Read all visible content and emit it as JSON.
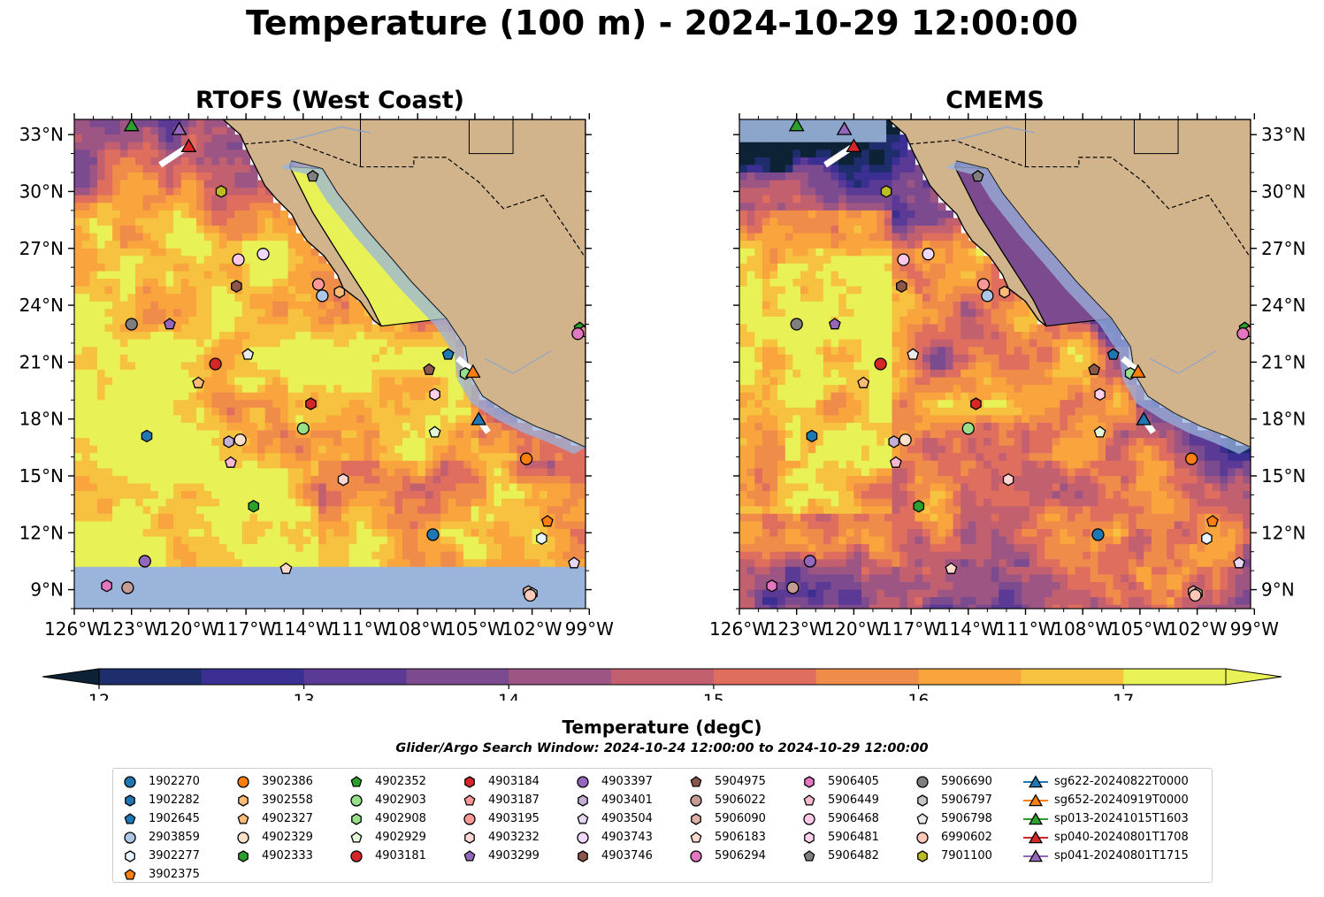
{
  "figure": {
    "title": "Temperature (100 m) - 2024-10-29 12:00:00"
  },
  "panels": [
    {
      "title": "RTOFS (West Coast)",
      "tick_side": "left"
    },
    {
      "title": "CMEMS",
      "tick_side": "right"
    }
  ],
  "colors": {
    "land": "#d2b48c",
    "shallow_water": "#9ab4dc",
    "coast": "#000000",
    "rivers": "#8fa6c8"
  },
  "colorbar": {
    "label": "Temperature (degC)",
    "ticks": [
      "12",
      "13",
      "14",
      "15",
      "16",
      "17"
    ],
    "tick_values": [
      12,
      13,
      14,
      15,
      16,
      17
    ],
    "levels": [
      11.5,
      12,
      12.5,
      13,
      13.5,
      14,
      14.5,
      15,
      15.5,
      16,
      16.5,
      17,
      17.5,
      18
    ],
    "colors": [
      "#0d2235",
      "#1e2e6c",
      "#3b2f94",
      "#5b3a95",
      "#7b4a8f",
      "#9d5684",
      "#c2606f",
      "#e06e5f",
      "#f08c49",
      "#f9a43d",
      "#f6c23f",
      "#e8f257"
    ],
    "extend": "both"
  },
  "search_window": "Glider/Argo Search Window: 2024-10-24 12:00:00 to 2024-10-29 12:00:00",
  "chart_data": {
    "type": "heatmap",
    "variable": "Temperature (100 m)",
    "units": "degC",
    "x_ticks": [
      "126°W",
      "123°W",
      "120°W",
      "117°W",
      "114°W",
      "111°W",
      "108°W",
      "105°W",
      "102°W",
      "99°W"
    ],
    "x_tick_values": [
      -126,
      -123,
      -120,
      -117,
      -114,
      -111,
      -108,
      -105,
      -102,
      -99
    ],
    "y_ticks": [
      "33°N",
      "30°N",
      "27°N",
      "24°N",
      "21°N",
      "18°N",
      "15°N",
      "12°N",
      "9°N"
    ],
    "y_tick_values": [
      33,
      30,
      27,
      24,
      21,
      18,
      15,
      12,
      9
    ],
    "xlim": [
      -126,
      -99.2
    ],
    "ylim": [
      8,
      33.8
    ],
    "rtofs_data_south_limit": 10.2,
    "floats": [
      {
        "id": "1902270",
        "marker": "o",
        "color": "#1f77b4",
        "lon": -107.2,
        "lat": 11.9
      },
      {
        "id": "1902282",
        "marker": "h",
        "color": "#1f77b4",
        "lon": -122.2,
        "lat": 17.1
      },
      {
        "id": "1902645",
        "marker": "p",
        "color": "#1f77b4",
        "lon": -106.4,
        "lat": 21.4
      },
      {
        "id": "2903859",
        "marker": "o",
        "color": "#aec7e8",
        "lon": -113.0,
        "lat": 24.5
      },
      {
        "id": "3902277",
        "marker": "h",
        "color": "#e8f4ff",
        "lon": -101.5,
        "lat": 11.7
      },
      {
        "id": "3902375",
        "marker": "p",
        "color": "#ff7f0e",
        "lon": -101.2,
        "lat": 12.6
      },
      {
        "id": "3902386",
        "marker": "o",
        "color": "#ff7f0e",
        "lon": -102.3,
        "lat": 15.9
      },
      {
        "id": "3902558",
        "marker": "h",
        "color": "#ffbb78",
        "lon": -112.1,
        "lat": 24.7
      },
      {
        "id": "4902327",
        "marker": "p",
        "color": "#ffbb78",
        "lon": -119.5,
        "lat": 19.9
      },
      {
        "id": "4902329",
        "marker": "o",
        "color": "#ffe0c8",
        "lon": -117.3,
        "lat": 16.9
      },
      {
        "id": "4902333",
        "marker": "h",
        "color": "#2ca02c",
        "lon": -116.6,
        "lat": 13.4
      },
      {
        "id": "4902352",
        "marker": "p",
        "color": "#2ca02c",
        "lon": -99.5,
        "lat": 22.8
      },
      {
        "id": "4902903",
        "marker": "o",
        "color": "#98df8a",
        "lon": -114.0,
        "lat": 17.5
      },
      {
        "id": "4902908",
        "marker": "h",
        "color": "#98df8a",
        "lon": -105.5,
        "lat": 20.4
      },
      {
        "id": "4902929",
        "marker": "p",
        "color": "#e2f8d8",
        "lon": -107.1,
        "lat": 17.3
      },
      {
        "id": "4903181",
        "marker": "o",
        "color": "#d62728",
        "lon": -118.6,
        "lat": 20.9
      },
      {
        "id": "4903184",
        "marker": "h",
        "color": "#d62728",
        "lon": -113.6,
        "lat": 18.8
      },
      {
        "id": "4903187",
        "marker": "p",
        "color": "#ff9896",
        "lon": -99.3,
        "lat": 22.6
      },
      {
        "id": "4903195",
        "marker": "o",
        "color": "#ff9896",
        "lon": -113.2,
        "lat": 25.1
      },
      {
        "id": "4903232",
        "marker": "h",
        "color": "#ffd6d4",
        "lon": -111.9,
        "lat": 14.8
      },
      {
        "id": "4903299",
        "marker": "p",
        "color": "#9467bd",
        "lon": -121.0,
        "lat": 23.0
      },
      {
        "id": "4903397",
        "marker": "o",
        "color": "#9467bd",
        "lon": -122.3,
        "lat": 10.5
      },
      {
        "id": "4903401",
        "marker": "h",
        "color": "#c5b0d5",
        "lon": -117.9,
        "lat": 16.8
      },
      {
        "id": "4903504",
        "marker": "p",
        "color": "#e5d8f0",
        "lon": -99.8,
        "lat": 10.4
      },
      {
        "id": "4903743",
        "marker": "o",
        "color": "#f0d8ff",
        "lon": -116.1,
        "lat": 26.7
      },
      {
        "id": "4903746",
        "marker": "h",
        "color": "#8c564b",
        "lon": -117.5,
        "lat": 25.0
      },
      {
        "id": "5904975",
        "marker": "p",
        "color": "#8c564b",
        "lon": -107.4,
        "lat": 20.6
      },
      {
        "id": "5906022",
        "marker": "o",
        "color": "#c49c94",
        "lon": -123.2,
        "lat": 9.1
      },
      {
        "id": "5906090",
        "marker": "h",
        "color": "#e0b0a8",
        "lon": -102.2,
        "lat": 8.9
      },
      {
        "id": "5906183",
        "marker": "p",
        "color": "#ffd8cc",
        "lon": -114.9,
        "lat": 10.1
      },
      {
        "id": "5906294",
        "marker": "o",
        "color": "#e377c2",
        "lon": -99.6,
        "lat": 22.5
      },
      {
        "id": "5906405",
        "marker": "h",
        "color": "#e377c2",
        "lon": -124.3,
        "lat": 9.2
      },
      {
        "id": "5906449",
        "marker": "p",
        "color": "#f7b6d2",
        "lon": -117.8,
        "lat": 15.7
      },
      {
        "id": "5906468",
        "marker": "o",
        "color": "#ffc8e8",
        "lon": -117.4,
        "lat": 26.4
      },
      {
        "id": "5906481",
        "marker": "h",
        "color": "#ffd0ec",
        "lon": -107.1,
        "lat": 19.3
      },
      {
        "id": "5906482",
        "marker": "p",
        "color": "#7f7f7f",
        "lon": -113.5,
        "lat": 30.8
      },
      {
        "id": "5906690",
        "marker": "o",
        "color": "#7f7f7f",
        "lon": -123.0,
        "lat": 23.0
      },
      {
        "id": "5906797",
        "marker": "h",
        "color": "#c7c7c7",
        "lon": -102.0,
        "lat": 8.8
      },
      {
        "id": "5906798",
        "marker": "p",
        "color": "#eaeaea",
        "lon": -116.9,
        "lat": 21.4
      },
      {
        "id": "6990602",
        "marker": "o",
        "color": "#ffc8b8",
        "lon": -102.1,
        "lat": 8.7
      },
      {
        "id": "7901100",
        "marker": "h",
        "color": "#bcbd22",
        "lon": -118.3,
        "lat": 30.0
      }
    ],
    "gliders": [
      {
        "id": "sg622-20240822T0000",
        "color": "#1f77b4",
        "lon": -104.8,
        "lat": 18.0,
        "track": [
          [
            -104.8,
            18.0
          ],
          [
            -104.3,
            17.3
          ]
        ]
      },
      {
        "id": "sg652-20240919T0000",
        "color": "#ff7f0e",
        "lon": -105.1,
        "lat": 20.5,
        "track": [
          [
            -105.1,
            20.5
          ],
          [
            -105.9,
            21.2
          ]
        ]
      },
      {
        "id": "sp013-20241015T1603",
        "color": "#2ca02c",
        "lon": -123.0,
        "lat": 33.5,
        "track": [
          [
            -123.0,
            33.5
          ]
        ]
      },
      {
        "id": "sp040-20240801T1708",
        "color": "#d62728",
        "lon": -120.0,
        "lat": 32.4,
        "track": [
          [
            -120.0,
            32.4
          ],
          [
            -121.5,
            31.4
          ]
        ]
      },
      {
        "id": "sp041-20240801T1715",
        "color": "#9467bd",
        "lon": -120.5,
        "lat": 33.3,
        "track": [
          [
            -120.5,
            33.3
          ]
        ]
      }
    ]
  }
}
